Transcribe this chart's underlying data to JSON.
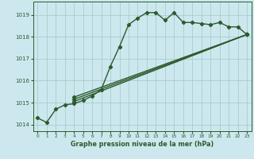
{
  "background_color": "#cce8ee",
  "grid_color": "#aacccc",
  "line_color": "#2d5a2d",
  "title": "Graphe pression niveau de la mer (hPa)",
  "xlim": [
    -0.5,
    23.5
  ],
  "ylim": [
    1013.7,
    1019.6
  ],
  "yticks": [
    1014,
    1015,
    1016,
    1017,
    1018,
    1019
  ],
  "xticks": [
    0,
    1,
    2,
    3,
    4,
    5,
    6,
    7,
    8,
    9,
    10,
    11,
    12,
    13,
    14,
    15,
    16,
    17,
    18,
    19,
    20,
    21,
    22,
    23
  ],
  "series": [
    {
      "x": [
        0,
        1,
        2,
        3,
        4,
        5,
        6,
        7,
        8,
        9,
        10,
        11,
        12,
        13,
        14,
        15,
        16,
        17,
        18,
        19,
        20,
        21,
        22,
        23
      ],
      "y": [
        1014.3,
        1014.1,
        1014.7,
        1014.9,
        1014.95,
        1015.1,
        1015.3,
        1015.6,
        1016.65,
        1017.55,
        1018.55,
        1018.85,
        1019.1,
        1019.1,
        1018.75,
        1019.1,
        1018.65,
        1018.65,
        1018.6,
        1018.55,
        1018.65,
        1018.45,
        1018.45,
        1018.1
      ],
      "linestyle": "-",
      "linewidth": 1.0
    },
    {
      "x": [
        4,
        23
      ],
      "y": [
        1015.05,
        1018.1
      ],
      "linestyle": "-",
      "linewidth": 1.0
    },
    {
      "x": [
        4,
        23
      ],
      "y": [
        1015.15,
        1018.1
      ],
      "linestyle": "-",
      "linewidth": 1.0
    },
    {
      "x": [
        4,
        23
      ],
      "y": [
        1015.25,
        1018.1
      ],
      "linestyle": "-",
      "linewidth": 1.0
    }
  ],
  "marker": "D",
  "markersize": 2.2,
  "linewidth": 1.0
}
